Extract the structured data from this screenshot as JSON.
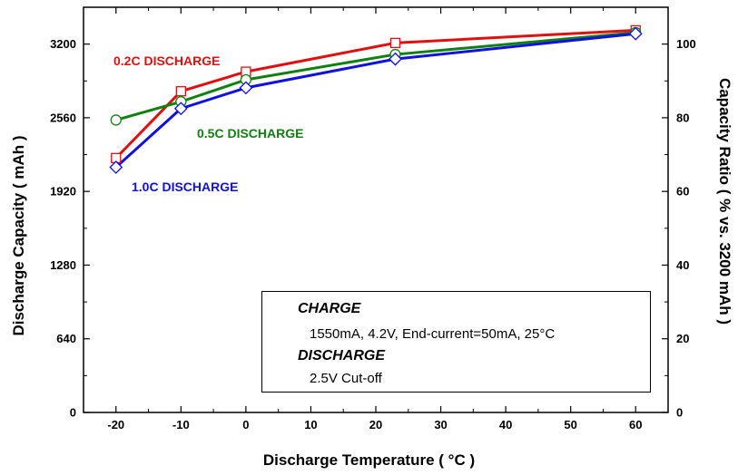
{
  "chart_data": {
    "type": "line",
    "xlabel": "Discharge Temperature",
    "xlabel_unit": "( °C )",
    "ylabel_left": "Discharge Capacity ( mAh )",
    "ylabel_right": "Capacity Ratio ( % vs. 3200 mAh )",
    "xlim": [
      -25,
      65
    ],
    "ylim_left": [
      0,
      3520
    ],
    "ylim_right": [
      0,
      110
    ],
    "x_ticks": [
      -20,
      -10,
      0,
      10,
      20,
      30,
      40,
      50,
      60
    ],
    "y_ticks_left": [
      0,
      640,
      1280,
      1920,
      2560,
      3200
    ],
    "y_ticks_right": [
      0,
      20,
      40,
      60,
      80,
      100
    ],
    "grid": false,
    "series": [
      {
        "name": "0.2C DISCHARGE",
        "color": "#e01010",
        "marker": "square",
        "x": [
          -20,
          -10,
          0,
          23,
          60
        ],
        "values": [
          2210,
          2790,
          2960,
          3210,
          3320
        ]
      },
      {
        "name": "0.5C DISCHARGE",
        "color": "#108010",
        "marker": "circle",
        "x": [
          -20,
          -10,
          0,
          23,
          60
        ],
        "values": [
          2540,
          2700,
          2890,
          3110,
          3300
        ]
      },
      {
        "name": "1.0C DISCHARGE",
        "color": "#1010e0",
        "marker": "diamond",
        "x": [
          -20,
          -10,
          0,
          23,
          60
        ],
        "values": [
          2130,
          2640,
          2820,
          3070,
          3290
        ]
      }
    ],
    "legend": {
      "charge_header": "CHARGE",
      "charge_text": "1550mA, 4.2V, End-current=50mA, 25°C",
      "discharge_header": "DISCHARGE",
      "discharge_text": "2.5V Cut-off"
    }
  }
}
